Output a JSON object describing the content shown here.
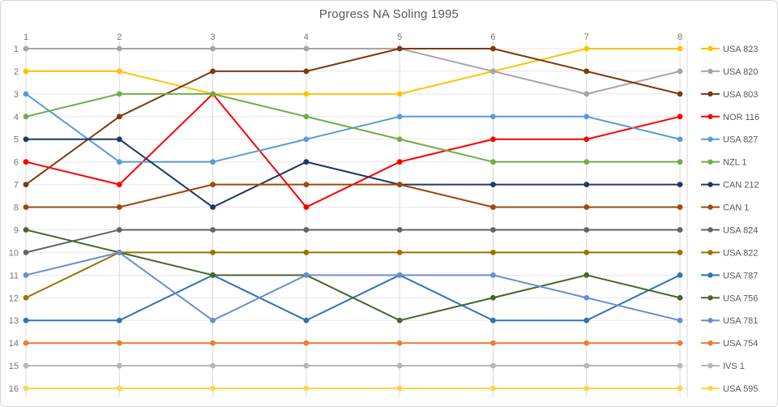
{
  "window": {
    "background": "#ffffff",
    "border_color": "#d6d6d6"
  },
  "styles": {
    "title_color": "#595959",
    "axis_label_color": "#757575",
    "legend_text_color": "#595959",
    "vgrid_color": "#d9d9d9",
    "hgrid_color": "#e7e7e7",
    "plot_border_color": "#d9d9d9"
  },
  "chart_data": {
    "type": "line",
    "title": "Progress NA Soling 1995",
    "xlabel": "",
    "ylabel": "",
    "x_axis": {
      "position": "top",
      "tick_labels": [
        "1",
        "2",
        "3",
        "4",
        "5",
        "6",
        "7",
        "8"
      ]
    },
    "y_axis": {
      "position": "left",
      "reversed": true,
      "min": 1,
      "max": 16,
      "tick_labels": [
        "1",
        "2",
        "3",
        "4",
        "5",
        "6",
        "7",
        "8",
        "9",
        "10",
        "11",
        "12",
        "13",
        "14",
        "15",
        "16"
      ]
    },
    "grid": true,
    "legend_position": "right",
    "marker": "circle",
    "categories": [
      1,
      2,
      3,
      4,
      5,
      6,
      7,
      8
    ],
    "series": [
      {
        "name": "USA 823",
        "color": "#FFC000",
        "values": [
          2,
          2,
          3,
          3,
          3,
          2,
          1,
          1
        ]
      },
      {
        "name": "USA 820",
        "color": "#A5A5A5",
        "values": [
          1,
          1,
          1,
          1,
          1,
          2,
          3,
          2
        ]
      },
      {
        "name": "USA 803",
        "color": "#7B3A10",
        "values": [
          7,
          4,
          2,
          2,
          1,
          1,
          2,
          3
        ]
      },
      {
        "name": "NOR 116",
        "color": "#FF0000",
        "values": [
          6,
          7,
          3,
          8,
          6,
          5,
          5,
          4
        ]
      },
      {
        "name": "USA 827",
        "color": "#5B9BD5",
        "values": [
          3,
          6,
          6,
          5,
          4,
          4,
          4,
          5
        ]
      },
      {
        "name": "NZL 1",
        "color": "#70AD47",
        "values": [
          4,
          3,
          3,
          4,
          5,
          6,
          6,
          6
        ]
      },
      {
        "name": "CAN 212",
        "color": "#1F3864",
        "values": [
          5,
          5,
          8,
          6,
          7,
          7,
          7,
          7
        ]
      },
      {
        "name": "CAN 1",
        "color": "#9E480E",
        "values": [
          8,
          8,
          7,
          7,
          7,
          8,
          8,
          8
        ]
      },
      {
        "name": "USA 824",
        "color": "#636363",
        "values": [
          10,
          9,
          9,
          9,
          9,
          9,
          9,
          9
        ]
      },
      {
        "name": "USA 822",
        "color": "#997300",
        "values": [
          12,
          10,
          10,
          10,
          10,
          10,
          10,
          10
        ]
      },
      {
        "name": "USA 787",
        "color": "#2E75B6",
        "values": [
          13,
          13,
          11,
          13,
          11,
          13,
          13,
          11
        ]
      },
      {
        "name": "USA 756",
        "color": "#43682B",
        "values": [
          9,
          10,
          11,
          11,
          13,
          12,
          11,
          12
        ]
      },
      {
        "name": "USA 781",
        "color": "#698ED0",
        "values": [
          11,
          10,
          13,
          11,
          11,
          11,
          12,
          13
        ]
      },
      {
        "name": "USA 754",
        "color": "#ED7D31",
        "values": [
          14,
          14,
          14,
          14,
          14,
          14,
          14,
          14
        ]
      },
      {
        "name": "IVS 1",
        "color": "#B7B7B7",
        "values": [
          15,
          15,
          15,
          15,
          15,
          15,
          15,
          15
        ]
      },
      {
        "name": "USA 595",
        "color": "#FFD34D",
        "values": [
          16,
          16,
          16,
          16,
          16,
          16,
          16,
          16
        ]
      }
    ]
  }
}
